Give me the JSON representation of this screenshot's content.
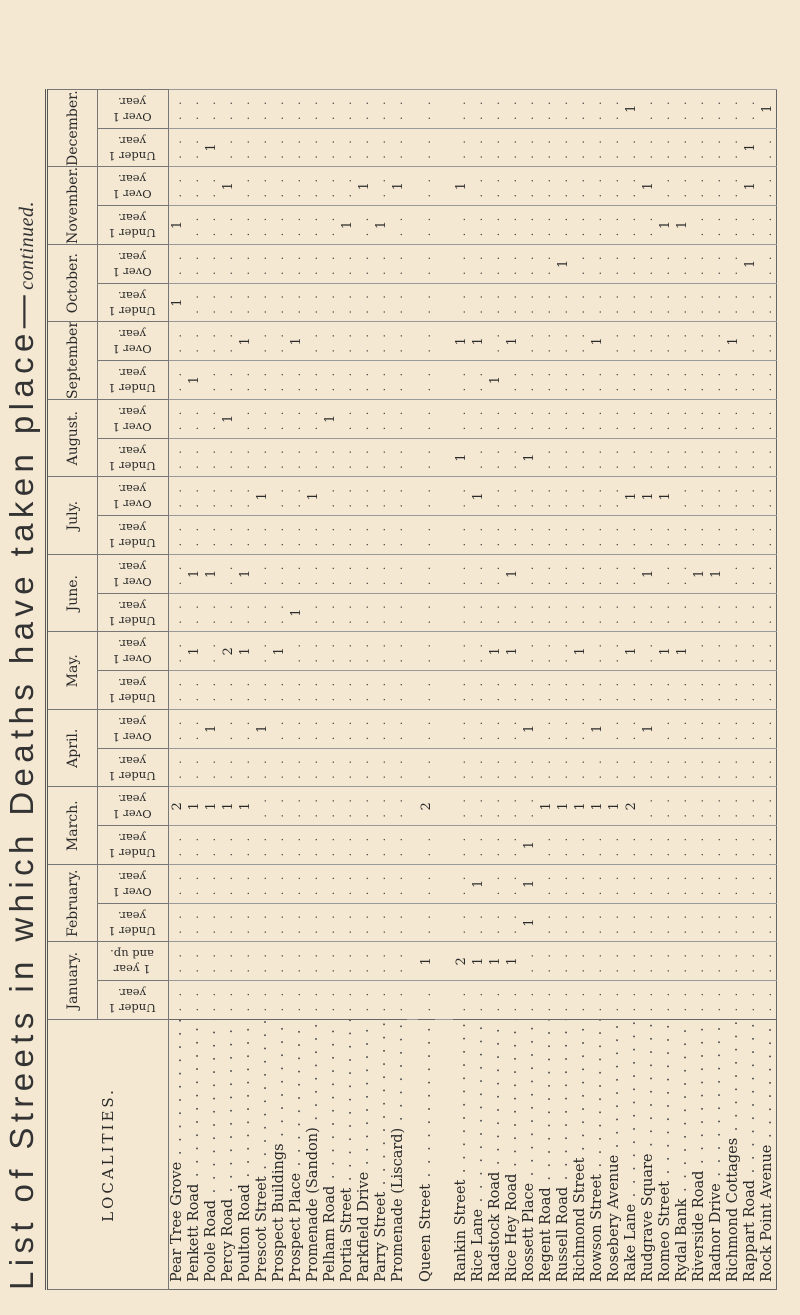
{
  "title": {
    "main": "List of Streets in which Deaths have taken place—",
    "suffix": "continued."
  },
  "localities_header": "LOCALITIES.",
  "months": [
    {
      "name": "January.",
      "sub": [
        "Under 1 year.",
        "1 year and up."
      ]
    },
    {
      "name": "February.",
      "sub": [
        "Under 1 year.",
        "Over 1 year."
      ]
    },
    {
      "name": "March.",
      "sub": [
        "Under 1 year.",
        "Over 1 year."
      ]
    },
    {
      "name": "April.",
      "sub": [
        "Under 1 year.",
        "Over 1 year."
      ]
    },
    {
      "name": "May.",
      "sub": [
        "Under 1 year.",
        "Over 1 year."
      ]
    },
    {
      "name": "June.",
      "sub": [
        "Under 1 year.",
        "Over 1 year."
      ]
    },
    {
      "name": "July.",
      "sub": [
        "Under 1 year.",
        "Over 1 year."
      ]
    },
    {
      "name": "August.",
      "sub": [
        "Under 1 year.",
        "Over 1 year."
      ]
    },
    {
      "name": "September.",
      "sub": [
        "Under 1 year.",
        "Over 1 year."
      ]
    },
    {
      "name": "October.",
      "sub": [
        "Under 1 year.",
        "Over 1 year."
      ]
    },
    {
      "name": "November.",
      "sub": [
        "Under 1 year.",
        "Over 1 year."
      ]
    },
    {
      "name": "December.",
      "sub": [
        "Under 1 year.",
        "Over 1 year."
      ]
    }
  ],
  "locality_groups": [
    [
      {
        "name": "Pear Tree Grove",
        "values": [
          null,
          null,
          null,
          null,
          null,
          2,
          null,
          null,
          null,
          null,
          null,
          null,
          null,
          null,
          null,
          null,
          null,
          null,
          1,
          null,
          1,
          null,
          null,
          null
        ]
      },
      {
        "name": "Penkett Road",
        "values": [
          null,
          null,
          null,
          null,
          null,
          1,
          null,
          null,
          null,
          1,
          null,
          1,
          null,
          null,
          null,
          null,
          1,
          null,
          null,
          null,
          null,
          null,
          null,
          null
        ]
      },
      {
        "name": "Poole Road",
        "values": [
          null,
          null,
          null,
          null,
          null,
          1,
          null,
          1,
          null,
          null,
          null,
          1,
          null,
          null,
          null,
          null,
          null,
          null,
          null,
          null,
          null,
          null,
          1,
          null
        ]
      },
      {
        "name": "Percy Road",
        "values": [
          null,
          null,
          null,
          null,
          null,
          1,
          null,
          null,
          null,
          2,
          null,
          null,
          null,
          null,
          null,
          1,
          null,
          null,
          null,
          null,
          null,
          1,
          null,
          null
        ]
      },
      {
        "name": "Poulton Road",
        "values": [
          null,
          null,
          null,
          null,
          null,
          1,
          null,
          null,
          null,
          1,
          null,
          1,
          null,
          null,
          null,
          null,
          null,
          1,
          null,
          null,
          null,
          null,
          null,
          null
        ]
      },
      {
        "name": "Prescot Street",
        "values": [
          null,
          null,
          null,
          null,
          null,
          null,
          null,
          1,
          null,
          null,
          null,
          null,
          null,
          1,
          null,
          null,
          null,
          null,
          null,
          null,
          null,
          null,
          null,
          null
        ]
      },
      {
        "name": "Prospect Buildings",
        "values": [
          null,
          null,
          null,
          null,
          null,
          null,
          null,
          null,
          null,
          1,
          null,
          null,
          null,
          null,
          null,
          null,
          null,
          null,
          null,
          null,
          null,
          null,
          null,
          null
        ]
      },
      {
        "name": "Prospect Place",
        "values": [
          null,
          null,
          null,
          null,
          null,
          null,
          null,
          null,
          null,
          null,
          1,
          null,
          null,
          null,
          null,
          null,
          null,
          1,
          null,
          null,
          null,
          null,
          null,
          null
        ]
      },
      {
        "name": "Promenade (Sandon)",
        "values": [
          null,
          null,
          null,
          null,
          null,
          null,
          null,
          null,
          null,
          null,
          null,
          null,
          null,
          1,
          null,
          null,
          null,
          null,
          null,
          null,
          null,
          null,
          null,
          null
        ]
      },
      {
        "name": "Pelham Road",
        "values": [
          null,
          null,
          null,
          null,
          null,
          null,
          null,
          null,
          null,
          null,
          null,
          null,
          null,
          null,
          null,
          1,
          null,
          null,
          null,
          null,
          null,
          null,
          null,
          null
        ]
      },
      {
        "name": "Portia Street",
        "values": [
          null,
          null,
          null,
          null,
          null,
          null,
          null,
          null,
          null,
          null,
          null,
          null,
          null,
          null,
          null,
          null,
          null,
          null,
          null,
          null,
          1,
          null,
          null,
          null
        ]
      },
      {
        "name": "Parkfield Drive",
        "values": [
          null,
          null,
          null,
          null,
          null,
          null,
          null,
          null,
          null,
          null,
          null,
          null,
          null,
          null,
          null,
          null,
          null,
          null,
          null,
          null,
          null,
          1,
          null,
          null
        ]
      },
      {
        "name": "Parry Street",
        "values": [
          null,
          null,
          null,
          null,
          null,
          null,
          null,
          null,
          null,
          null,
          null,
          null,
          null,
          null,
          null,
          null,
          null,
          null,
          null,
          null,
          1,
          null,
          null,
          null
        ]
      },
      {
        "name": "Promenade (Liscard)",
        "values": [
          null,
          null,
          null,
          null,
          null,
          null,
          null,
          null,
          null,
          null,
          null,
          null,
          null,
          null,
          null,
          null,
          null,
          null,
          null,
          null,
          null,
          1,
          null,
          null
        ]
      }
    ],
    [
      {
        "name": "Queen Street",
        "values": [
          null,
          1,
          null,
          null,
          null,
          2,
          null,
          null,
          null,
          null,
          null,
          null,
          null,
          null,
          null,
          null,
          null,
          null,
          null,
          null,
          null,
          null,
          null,
          null
        ]
      }
    ],
    [
      {
        "name": "Rankin Street",
        "values": [
          null,
          2,
          null,
          null,
          null,
          null,
          null,
          null,
          null,
          null,
          null,
          null,
          null,
          null,
          1,
          null,
          null,
          1,
          null,
          null,
          null,
          1,
          null,
          null
        ]
      },
      {
        "name": "Rice Lane",
        "values": [
          null,
          1,
          null,
          1,
          null,
          null,
          null,
          null,
          null,
          null,
          null,
          null,
          null,
          1,
          null,
          null,
          null,
          1,
          null,
          null,
          null,
          null,
          null,
          null
        ]
      },
      {
        "name": "Radstock Road",
        "values": [
          null,
          1,
          null,
          null,
          null,
          null,
          null,
          null,
          null,
          1,
          null,
          null,
          null,
          null,
          null,
          null,
          1,
          null,
          null,
          null,
          null,
          null,
          null,
          null
        ]
      },
      {
        "name": "Rice Hey Road",
        "values": [
          null,
          1,
          null,
          null,
          null,
          null,
          null,
          null,
          null,
          1,
          null,
          1,
          null,
          null,
          null,
          null,
          null,
          1,
          null,
          null,
          null,
          null,
          null,
          null
        ]
      },
      {
        "name": "Rossett Place",
        "values": [
          null,
          null,
          1,
          1,
          1,
          null,
          null,
          1,
          null,
          null,
          null,
          null,
          null,
          null,
          1,
          null,
          null,
          null,
          null,
          null,
          null,
          null,
          null,
          null
        ]
      },
      {
        "name": "Regent Road",
        "values": [
          null,
          null,
          null,
          null,
          null,
          1,
          null,
          null,
          null,
          null,
          null,
          null,
          null,
          null,
          null,
          null,
          null,
          null,
          null,
          null,
          null,
          null,
          null,
          null
        ]
      },
      {
        "name": "Russell Road",
        "values": [
          null,
          null,
          null,
          null,
          null,
          1,
          null,
          null,
          null,
          null,
          null,
          null,
          null,
          null,
          null,
          null,
          null,
          null,
          null,
          1,
          null,
          null,
          null,
          null
        ]
      },
      {
        "name": "Richmond Street",
        "values": [
          null,
          null,
          null,
          null,
          null,
          1,
          null,
          null,
          null,
          1,
          null,
          null,
          null,
          null,
          null,
          null,
          null,
          null,
          null,
          null,
          null,
          null,
          null,
          null
        ]
      },
      {
        "name": "Rowson Street",
        "values": [
          null,
          null,
          null,
          null,
          null,
          1,
          null,
          1,
          null,
          null,
          null,
          null,
          null,
          null,
          null,
          null,
          null,
          1,
          null,
          null,
          null,
          null,
          null,
          null
        ]
      },
      {
        "name": "Rosebery Avenue",
        "values": [
          null,
          null,
          null,
          null,
          null,
          1,
          null,
          null,
          null,
          null,
          null,
          null,
          null,
          null,
          null,
          null,
          null,
          null,
          null,
          null,
          null,
          null,
          null,
          null
        ]
      },
      {
        "name": "Rake Lane",
        "values": [
          null,
          null,
          null,
          null,
          null,
          2,
          null,
          null,
          null,
          1,
          null,
          null,
          null,
          1,
          null,
          null,
          null,
          null,
          null,
          null,
          null,
          null,
          null,
          1
        ]
      },
      {
        "name": "Rudgrave Square",
        "values": [
          null,
          null,
          null,
          null,
          null,
          null,
          null,
          1,
          null,
          null,
          null,
          1,
          null,
          1,
          null,
          null,
          null,
          null,
          null,
          null,
          null,
          1,
          null,
          null
        ]
      },
      {
        "name": "Romeo Street",
        "values": [
          null,
          null,
          null,
          null,
          null,
          null,
          null,
          null,
          null,
          1,
          null,
          null,
          null,
          1,
          null,
          null,
          null,
          null,
          null,
          null,
          1,
          null,
          null,
          null
        ]
      },
      {
        "name": "Rydal Bank",
        "values": [
          null,
          null,
          null,
          null,
          null,
          null,
          null,
          null,
          null,
          1,
          null,
          null,
          null,
          null,
          null,
          null,
          null,
          null,
          null,
          null,
          1,
          null,
          null,
          null
        ]
      },
      {
        "name": "Riverside Road",
        "values": [
          null,
          null,
          null,
          null,
          null,
          null,
          null,
          null,
          null,
          null,
          null,
          1,
          null,
          null,
          null,
          null,
          null,
          null,
          null,
          null,
          null,
          null,
          null,
          null
        ]
      },
      {
        "name": "Radnor Drive",
        "values": [
          null,
          null,
          null,
          null,
          null,
          null,
          null,
          null,
          null,
          null,
          null,
          1,
          null,
          null,
          null,
          null,
          null,
          null,
          null,
          null,
          null,
          null,
          null,
          null
        ]
      },
      {
        "name": "Richmond Cottages",
        "values": [
          null,
          null,
          null,
          null,
          null,
          null,
          null,
          null,
          null,
          null,
          null,
          null,
          null,
          null,
          null,
          null,
          null,
          1,
          null,
          null,
          null,
          null,
          null,
          null
        ]
      },
      {
        "name": "Rappart Road",
        "values": [
          null,
          null,
          null,
          null,
          null,
          null,
          null,
          null,
          null,
          null,
          null,
          null,
          null,
          null,
          null,
          null,
          null,
          null,
          null,
          1,
          null,
          1,
          1,
          null
        ]
      },
      {
        "name": "Rock Point Avenue",
        "values": [
          null,
          null,
          null,
          null,
          null,
          null,
          null,
          null,
          null,
          null,
          null,
          null,
          null,
          null,
          null,
          null,
          null,
          null,
          null,
          null,
          null,
          null,
          null,
          1
        ]
      }
    ]
  ]
}
